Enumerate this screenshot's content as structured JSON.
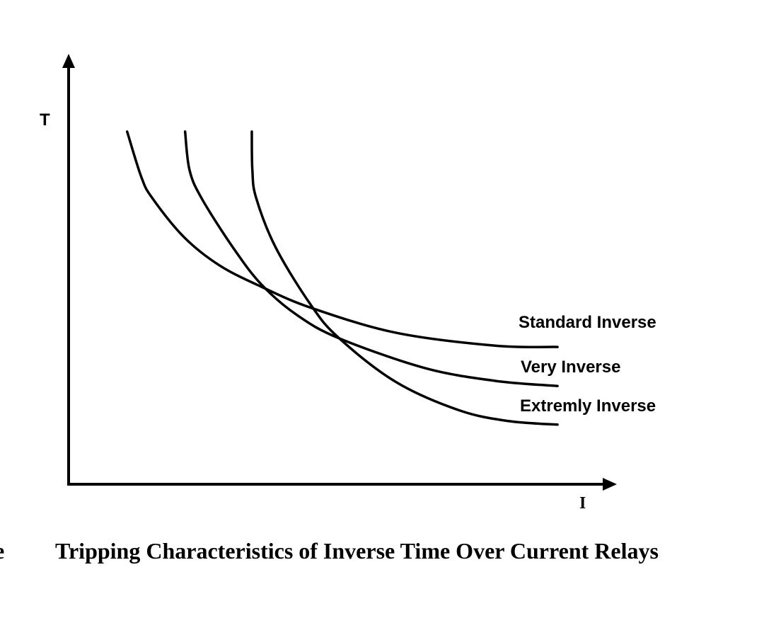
{
  "chart_data": {
    "type": "line",
    "title": "Tripping Characteristics of Inverse Time Over Current Relays",
    "title_prefix_fragment": "e",
    "xlabel": "I",
    "ylabel": "T",
    "xlim": [
      0,
      100
    ],
    "ylim": [
      0,
      100
    ],
    "grid": false,
    "legend": "inline-right",
    "series": [
      {
        "name": "Standard Inverse",
        "x": [
          10.7,
          13.3,
          15.3,
          21.1,
          27.6,
          35.3,
          44.4,
          59.9,
          78.0,
          89.4
        ],
        "y": [
          82.2,
          71.6,
          66.7,
          57.6,
          51.0,
          46.0,
          41.1,
          35.3,
          32.3,
          32.0
        ]
      },
      {
        "name": "Very Inverse",
        "x": [
          21.3,
          22.1,
          24.3,
          30.1,
          35.3,
          41.8,
          49.5,
          65.1,
          78.0,
          89.4
        ],
        "y": [
          82.2,
          73.3,
          66.7,
          55.1,
          46.5,
          39.4,
          34.0,
          27.1,
          24.1,
          22.9
        ]
      },
      {
        "name": "Extremly Inverse",
        "x": [
          33.5,
          33.6,
          34.3,
          37.9,
          44.4,
          49.5,
          59.9,
          71.5,
          80.6,
          89.4
        ],
        "y": [
          82.2,
          73.3,
          66.7,
          55.1,
          41.6,
          34.0,
          23.8,
          17.2,
          14.7,
          13.9
        ]
      }
    ]
  }
}
